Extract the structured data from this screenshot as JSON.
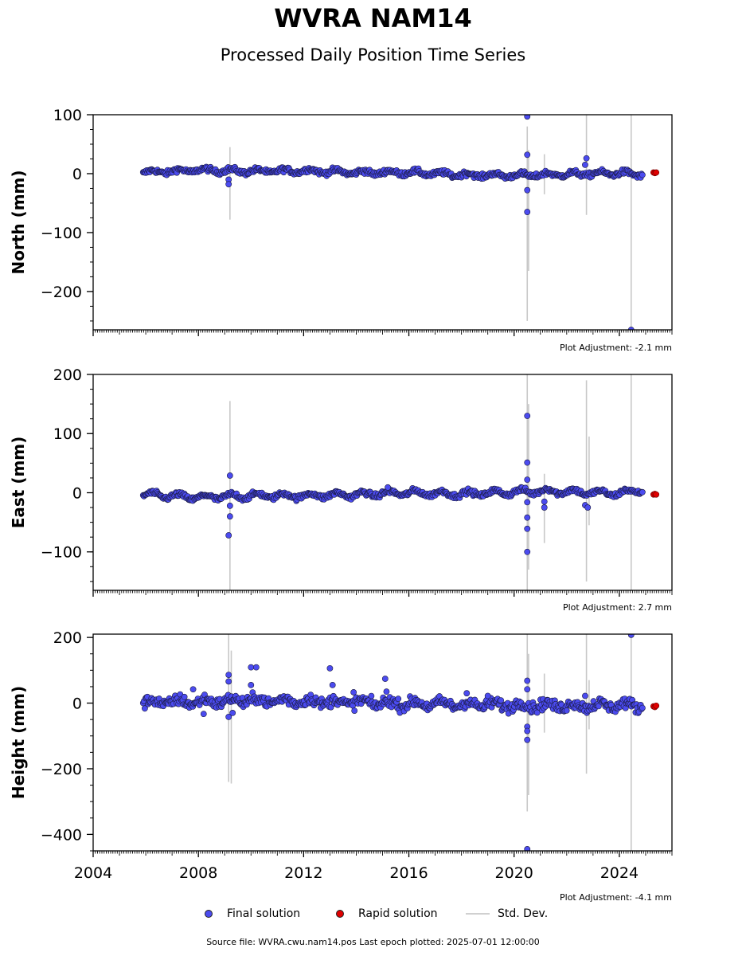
{
  "header": {
    "title": "WVRA NAM14",
    "subtitle": "Processed Daily Position Time Series"
  },
  "legend": {
    "final_label": "Final solution",
    "rapid_label": "Rapid solution",
    "std_label": "Std. Dev."
  },
  "footer": {
    "source_text": "Source file: WVRA.cwu.nam14.pos  Last epoch plotted: 2025-07-01 12:00:00"
  },
  "colors": {
    "final": "#4b4bef",
    "rapid": "#e00000",
    "std": "#c8c8c8",
    "edge": "#1a1a40"
  },
  "chart_data": [
    {
      "type": "scatter",
      "ylabel": "North (mm)",
      "ylim": [
        -265,
        100
      ],
      "xlim": [
        2004.0,
        2026.0
      ],
      "yticks": [
        100,
        0,
        -100,
        -200
      ],
      "ytick_labels": [
        "100",
        "0",
        "−100",
        "−200"
      ],
      "plot_adjustment": "Plot Adjustment: -2.1 mm",
      "show_xtick_labels": false,
      "noise_amp": 3,
      "series": [
        {
          "name": "Final solution",
          "trend": [
            [
              2005.9,
              2
            ],
            [
              2008,
              6
            ],
            [
              2010,
              4
            ],
            [
              2012,
              5
            ],
            [
              2014,
              2
            ],
            [
              2016,
              2
            ],
            [
              2018,
              -2
            ],
            [
              2020,
              -3
            ],
            [
              2022,
              -1
            ],
            [
              2024,
              1
            ],
            [
              2024.9,
              -2
            ]
          ],
          "seasonal_amp": 3,
          "outliers": [
            [
              2009.15,
              -10
            ],
            [
              2009.15,
              -18
            ],
            [
              2020.5,
              97
            ],
            [
              2020.5,
              32
            ],
            [
              2020.5,
              -28
            ],
            [
              2020.5,
              -65
            ],
            [
              2022.75,
              26
            ],
            [
              2022.7,
              15
            ],
            [
              2024.45,
              -265
            ]
          ]
        },
        {
          "name": "Rapid solution",
          "points": [
            [
              2025.3,
              2
            ],
            [
              2025.35,
              1
            ],
            [
              2025.4,
              2
            ]
          ]
        }
      ],
      "std_dev": [
        [
          2009.2,
          45,
          -78
        ],
        [
          2020.5,
          80,
          -250
        ],
        [
          2020.55,
          40,
          -165
        ],
        [
          2021.15,
          33,
          -35
        ],
        [
          2022.75,
          100,
          -70
        ],
        [
          2024.45,
          100,
          -265
        ]
      ]
    },
    {
      "type": "scatter",
      "ylabel": "East (mm)",
      "ylim": [
        -165,
        200
      ],
      "xlim": [
        2004.0,
        2026.0
      ],
      "yticks": [
        200,
        100,
        0,
        -100
      ],
      "ytick_labels": [
        "200",
        "100",
        "0",
        "−100"
      ],
      "plot_adjustment": "Plot Adjustment: 2.7 mm",
      "show_xtick_labels": false,
      "noise_amp": 3,
      "series": [
        {
          "name": "Final solution",
          "trend": [
            [
              2005.9,
              -3
            ],
            [
              2008,
              -8
            ],
            [
              2010,
              -5
            ],
            [
              2012,
              -5
            ],
            [
              2014,
              -3
            ],
            [
              2016,
              0
            ],
            [
              2018,
              -2
            ],
            [
              2020,
              1
            ],
            [
              2021,
              3
            ],
            [
              2022,
              2
            ],
            [
              2023,
              0
            ],
            [
              2024,
              -1
            ],
            [
              2024.9,
              5
            ]
          ],
          "seasonal_amp": 4,
          "outliers": [
            [
              2009.2,
              29
            ],
            [
              2009.2,
              -22
            ],
            [
              2009.2,
              -40
            ],
            [
              2009.15,
              -72
            ],
            [
              2015.2,
              9
            ],
            [
              2020.5,
              130
            ],
            [
              2020.5,
              51
            ],
            [
              2020.5,
              22
            ],
            [
              2020.5,
              -16
            ],
            [
              2020.5,
              -42
            ],
            [
              2020.5,
              -61
            ],
            [
              2020.5,
              -100
            ],
            [
              2021.15,
              -15
            ],
            [
              2021.15,
              -25
            ],
            [
              2022.7,
              -21
            ],
            [
              2022.8,
              -25
            ]
          ]
        },
        {
          "name": "Rapid solution",
          "points": [
            [
              2025.3,
              -3
            ],
            [
              2025.35,
              -2
            ],
            [
              2025.4,
              -3
            ]
          ]
        }
      ],
      "std_dev": [
        [
          2009.2,
          155,
          -165
        ],
        [
          2020.5,
          200,
          -165
        ],
        [
          2020.55,
          150,
          -130
        ],
        [
          2021.15,
          32,
          -85
        ],
        [
          2022.75,
          190,
          -150
        ],
        [
          2022.85,
          95,
          -55
        ],
        [
          2024.45,
          200,
          -165
        ]
      ]
    },
    {
      "type": "scatter",
      "ylabel": "Height (mm)",
      "ylim": [
        -450,
        210
      ],
      "xlim": [
        2004.0,
        2026.0
      ],
      "yticks": [
        200,
        0,
        -200,
        -400
      ],
      "ytick_labels": [
        "200",
        "0",
        "−200",
        "−400"
      ],
      "xticks": [
        2004,
        2008,
        2012,
        2016,
        2020,
        2024
      ],
      "xtick_labels": [
        "2004",
        "2008",
        "2012",
        "2016",
        "2020",
        "2024"
      ],
      "plot_adjustment": "Plot Adjustment: -4.1 mm",
      "show_xtick_labels": true,
      "noise_amp": 12,
      "series": [
        {
          "name": "Final solution",
          "trend": [
            [
              2005.9,
              2
            ],
            [
              2008,
              4
            ],
            [
              2010,
              8
            ],
            [
              2012,
              6
            ],
            [
              2014,
              2
            ],
            [
              2016,
              -2
            ],
            [
              2018,
              -4
            ],
            [
              2020,
              -6
            ],
            [
              2022,
              -8
            ],
            [
              2024,
              -6
            ],
            [
              2024.9,
              -8
            ]
          ],
          "seasonal_amp": 8,
          "outliers": [
            [
              2007.8,
              42
            ],
            [
              2008.2,
              -33
            ],
            [
              2009.15,
              86
            ],
            [
              2009.15,
              66
            ],
            [
              2009.15,
              -42
            ],
            [
              2009.3,
              -30
            ],
            [
              2010.0,
              109
            ],
            [
              2010.2,
              109
            ],
            [
              2010.0,
              55
            ],
            [
              2013.0,
              106
            ],
            [
              2013.1,
              55
            ],
            [
              2013.9,
              33
            ],
            [
              2015.1,
              74
            ],
            [
              2015.15,
              35
            ],
            [
              2018.2,
              30
            ],
            [
              2019.0,
              22
            ],
            [
              2020.5,
              68
            ],
            [
              2020.5,
              42
            ],
            [
              2020.5,
              -72
            ],
            [
              2020.5,
              -85
            ],
            [
              2020.5,
              -112
            ],
            [
              2020.5,
              -445
            ],
            [
              2022.7,
              22
            ],
            [
              2024.45,
              208
            ]
          ]
        },
        {
          "name": "Rapid solution",
          "points": [
            [
              2025.3,
              -10
            ],
            [
              2025.35,
              -12
            ],
            [
              2025.4,
              -8
            ]
          ]
        }
      ],
      "std_dev": [
        [
          2009.15,
          210,
          -240
        ],
        [
          2009.25,
          160,
          -245
        ],
        [
          2020.5,
          210,
          -330
        ],
        [
          2020.55,
          150,
          -280
        ],
        [
          2021.15,
          90,
          -90
        ],
        [
          2022.75,
          210,
          -215
        ],
        [
          2022.85,
          70,
          -80
        ],
        [
          2024.45,
          210,
          -450
        ]
      ]
    }
  ]
}
